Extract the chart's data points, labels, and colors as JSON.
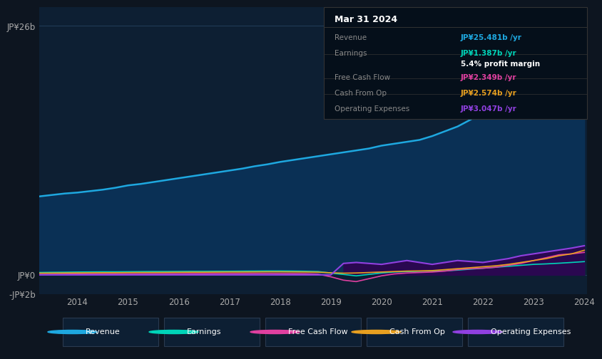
{
  "bg_color": "#0d1520",
  "chart_bg": "#0d1f33",
  "years": [
    2013.25,
    2013.5,
    2013.75,
    2014.0,
    2014.25,
    2014.5,
    2014.75,
    2015.0,
    2015.25,
    2015.5,
    2015.75,
    2016.0,
    2016.25,
    2016.5,
    2016.75,
    2017.0,
    2017.25,
    2017.5,
    2017.75,
    2018.0,
    2018.25,
    2018.5,
    2018.75,
    2019.0,
    2019.25,
    2019.5,
    2019.75,
    2020.0,
    2020.25,
    2020.5,
    2020.75,
    2021.0,
    2021.25,
    2021.5,
    2021.75,
    2022.0,
    2022.25,
    2022.5,
    2022.75,
    2023.0,
    2023.25,
    2023.5,
    2023.75,
    2024.0
  ],
  "revenue": [
    8.2,
    8.35,
    8.5,
    8.6,
    8.75,
    8.9,
    9.1,
    9.35,
    9.5,
    9.7,
    9.9,
    10.1,
    10.3,
    10.5,
    10.7,
    10.9,
    11.1,
    11.35,
    11.55,
    11.8,
    12.0,
    12.2,
    12.4,
    12.6,
    12.8,
    13.0,
    13.2,
    13.5,
    13.7,
    13.9,
    14.1,
    14.5,
    15.0,
    15.5,
    16.2,
    17.0,
    18.2,
    19.5,
    20.8,
    21.5,
    22.5,
    23.3,
    24.3,
    25.5
  ],
  "earnings": [
    0.25,
    0.27,
    0.28,
    0.3,
    0.31,
    0.32,
    0.32,
    0.33,
    0.34,
    0.35,
    0.35,
    0.36,
    0.37,
    0.37,
    0.38,
    0.38,
    0.39,
    0.4,
    0.41,
    0.41,
    0.4,
    0.38,
    0.35,
    0.2,
    0.05,
    -0.1,
    0.05,
    0.2,
    0.3,
    0.35,
    0.38,
    0.4,
    0.42,
    0.5,
    0.6,
    0.7,
    0.8,
    0.9,
    1.0,
    1.1,
    1.15,
    1.22,
    1.3,
    1.387
  ],
  "free_cash_flow": [
    0.05,
    0.06,
    0.07,
    0.08,
    0.09,
    0.1,
    0.1,
    0.1,
    0.11,
    0.11,
    0.12,
    0.12,
    0.13,
    0.13,
    0.14,
    0.14,
    0.14,
    0.15,
    0.15,
    0.14,
    0.13,
    0.12,
    0.08,
    -0.2,
    -0.55,
    -0.7,
    -0.4,
    -0.1,
    0.1,
    0.2,
    0.25,
    0.3,
    0.4,
    0.55,
    0.65,
    0.7,
    0.8,
    1.0,
    1.2,
    1.5,
    1.8,
    2.1,
    2.2,
    2.349
  ],
  "cash_from_op": [
    0.18,
    0.19,
    0.2,
    0.21,
    0.22,
    0.23,
    0.23,
    0.24,
    0.25,
    0.25,
    0.26,
    0.27,
    0.28,
    0.28,
    0.29,
    0.3,
    0.3,
    0.31,
    0.32,
    0.32,
    0.31,
    0.3,
    0.28,
    0.22,
    0.18,
    0.2,
    0.25,
    0.3,
    0.35,
    0.4,
    0.42,
    0.45,
    0.55,
    0.65,
    0.75,
    0.85,
    0.95,
    1.1,
    1.3,
    1.5,
    1.7,
    2.0,
    2.2,
    2.574
  ],
  "operating_expenses": [
    0.0,
    0.0,
    0.0,
    0.0,
    0.0,
    0.0,
    0.0,
    0.0,
    0.0,
    0.0,
    0.0,
    0.0,
    0.0,
    0.0,
    0.0,
    0.0,
    0.0,
    0.0,
    0.0,
    0.0,
    0.0,
    0.0,
    0.0,
    0.0,
    1.2,
    1.3,
    1.2,
    1.1,
    1.3,
    1.5,
    1.3,
    1.1,
    1.3,
    1.5,
    1.4,
    1.3,
    1.5,
    1.7,
    2.0,
    2.2,
    2.4,
    2.6,
    2.8,
    3.047
  ],
  "ylim": [
    -2.0,
    28.0
  ],
  "ytick_vals": [
    -2.0,
    0.0,
    26.0
  ],
  "ytick_labels": [
    "-JP¥2b",
    "JP¥0",
    "JP¥26b"
  ],
  "xtick_vals": [
    2014,
    2015,
    2016,
    2017,
    2018,
    2019,
    2020,
    2021,
    2022,
    2023,
    2024
  ],
  "revenue_color": "#1ea8e0",
  "earnings_color": "#00d4b8",
  "fcf_color": "#e040a0",
  "cfo_color": "#e8a020",
  "opex_color": "#9040e0",
  "revenue_fill": "#0a3055",
  "opex_fill": "#2a0850",
  "table_title": "Mar 31 2024",
  "table_rows": [
    {
      "label": "Revenue",
      "value": "JP¥25.481b /yr",
      "value_color": "#1ea8e0"
    },
    {
      "label": "Earnings",
      "value": "JP¥1.387b /yr",
      "value_color": "#00d4b8"
    },
    {
      "label": "",
      "value": "5.4% profit margin",
      "value_color": "#ffffff"
    },
    {
      "label": "Free Cash Flow",
      "value": "JP¥2.349b /yr",
      "value_color": "#e040a0"
    },
    {
      "label": "Cash From Op",
      "value": "JP¥2.574b /yr",
      "value_color": "#e8a020"
    },
    {
      "label": "Operating Expenses",
      "value": "JP¥3.047b /yr",
      "value_color": "#9040e0"
    }
  ],
  "legend_items": [
    {
      "label": "Revenue",
      "color": "#1ea8e0"
    },
    {
      "label": "Earnings",
      "color": "#00d4b8"
    },
    {
      "label": "Free Cash Flow",
      "color": "#e040a0"
    },
    {
      "label": "Cash From Op",
      "color": "#e8a020"
    },
    {
      "label": "Operating Expenses",
      "color": "#9040e0"
    }
  ]
}
